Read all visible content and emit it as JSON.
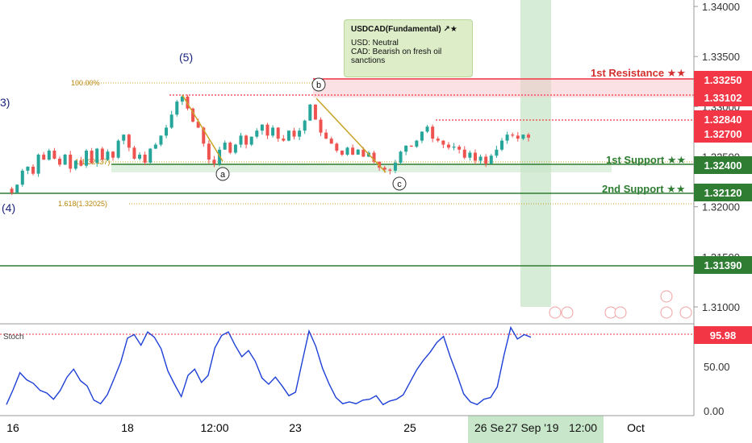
{
  "note": {
    "title": "USDCAD(Fundamental) ↗★",
    "usd": "USD: Neutral",
    "cad_line1": "CAD: Bearish on fresh oil",
    "cad_line2": "sanctions"
  },
  "levels": {
    "resistance_label": "1st Resistance ★★",
    "support1_label": "1st Support ★★",
    "support2_label": "2nd Support ★★"
  },
  "price_tags": [
    {
      "value": "1.33250",
      "color": "#f23645"
    },
    {
      "value": "1.33102",
      "color": "#f23645"
    },
    {
      "value": "1.32840",
      "color": "#f23645"
    },
    {
      "value": "1.32700",
      "color": "#f23645"
    },
    {
      "value": "1.32400",
      "color": "#2e7d32"
    },
    {
      "value": "1.32120",
      "color": "#2e7d32"
    },
    {
      "value": "1.31390",
      "color": "#2e7d32"
    }
  ],
  "waves": {
    "w5": "(5)",
    "w3": "3)",
    "w4": "(4)",
    "a": "a",
    "b": "b",
    "c": "c"
  },
  "fib": {
    "f100": "100.00%",
    "f1": "1(1.32437)",
    "f1618": "1.618(1.32025)"
  },
  "stoch": {
    "label": "Stoch",
    "last": "95.98"
  },
  "chart_data": [
    {
      "type": "candlestick",
      "title": "USDCAD",
      "y_ticks": [
        "1.34000",
        "1.33500",
        "1.33000",
        "1.32500",
        "1.32000",
        "1.31500",
        "1.31000"
      ],
      "x_ticks": [
        "16",
        "18",
        "12:00",
        "23",
        "25",
        "Oct"
      ],
      "crosshair_date": "27 Sep '19",
      "crosshair_prev": "26 Se",
      "crosshair_time": "12:00",
      "price_path": [
        1.3218,
        1.3214,
        1.3222,
        1.3236,
        1.324,
        1.3233,
        1.3252,
        1.3247,
        1.3256,
        1.3248,
        1.3242,
        1.3252,
        1.3238,
        1.3246,
        1.3241,
        1.3256,
        1.3244,
        1.3258,
        1.3247,
        1.3255,
        1.3249,
        1.3266,
        1.3272,
        1.3259,
        1.3248,
        1.3252,
        1.3244,
        1.3258,
        1.3262,
        1.3271,
        1.3279,
        1.3292,
        1.3305,
        1.331,
        1.3298,
        1.3285,
        1.3279,
        1.3263,
        1.3247,
        1.3243,
        1.3257,
        1.3264,
        1.3254,
        1.3262,
        1.3271,
        1.3262,
        1.327,
        1.3276,
        1.3282,
        1.3271,
        1.3279,
        1.3268,
        1.3266,
        1.3276,
        1.327,
        1.3276,
        1.3286,
        1.3302,
        1.3287,
        1.3274,
        1.3268,
        1.3263,
        1.3256,
        1.3252,
        1.3259,
        1.3252,
        1.3257,
        1.325,
        1.3254,
        1.3245,
        1.3239,
        1.3237,
        1.3236,
        1.3244,
        1.3255,
        1.3261,
        1.326,
        1.3266,
        1.3275,
        1.328,
        1.3268,
        1.3266,
        1.3262,
        1.3259,
        1.326,
        1.3257,
        1.3249,
        1.3254,
        1.3246,
        1.325,
        1.3243,
        1.3251,
        1.3257,
        1.3266,
        1.3272,
        1.3271,
        1.3268,
        1.3272,
        1.3269
      ],
      "stoch_path": [
        7,
        24,
        43,
        35,
        31,
        23,
        20,
        13,
        23,
        38,
        47,
        34,
        28,
        12,
        8,
        18,
        36,
        55,
        82,
        86,
        74,
        89,
        83,
        70,
        45,
        30,
        16,
        40,
        47,
        32,
        40,
        71,
        85,
        89,
        74,
        61,
        68,
        56,
        37,
        30,
        38,
        28,
        17,
        21,
        56,
        90,
        73,
        48,
        30,
        15,
        8,
        10,
        8,
        12,
        13,
        17,
        7,
        11,
        13,
        18,
        32,
        46,
        57,
        66,
        77,
        84,
        61,
        41,
        19,
        10,
        7,
        13,
        15,
        27,
        63,
        94,
        81,
        86,
        83
      ]
    }
  ]
}
